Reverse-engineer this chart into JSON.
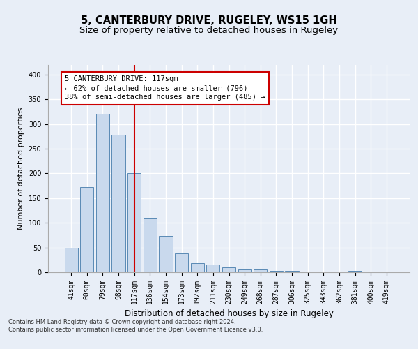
{
  "title": "5, CANTERBURY DRIVE, RUGELEY, WS15 1GH",
  "subtitle": "Size of property relative to detached houses in Rugeley",
  "xlabel": "Distribution of detached houses by size in Rugeley",
  "ylabel": "Number of detached properties",
  "bar_labels": [
    "41sqm",
    "60sqm",
    "79sqm",
    "98sqm",
    "117sqm",
    "136sqm",
    "154sqm",
    "173sqm",
    "192sqm",
    "211sqm",
    "230sqm",
    "249sqm",
    "268sqm",
    "287sqm",
    "306sqm",
    "325sqm",
    "343sqm",
    "362sqm",
    "381sqm",
    "400sqm",
    "419sqm"
  ],
  "bar_values": [
    50,
    172,
    320,
    278,
    200,
    109,
    73,
    38,
    18,
    16,
    10,
    5,
    5,
    3,
    3,
    0,
    0,
    0,
    3,
    0,
    2
  ],
  "bar_color": "#c9d9ed",
  "bar_edge_color": "#5a8ab5",
  "highlight_index": 4,
  "highlight_line_color": "#cc0000",
  "annotation_line1": "5 CANTERBURY DRIVE: 117sqm",
  "annotation_line2": "← 62% of detached houses are smaller (796)",
  "annotation_line3": "38% of semi-detached houses are larger (485) →",
  "annotation_box_color": "#ffffff",
  "annotation_box_edge_color": "#cc0000",
  "ylim": [
    0,
    420
  ],
  "yticks": [
    0,
    50,
    100,
    150,
    200,
    250,
    300,
    350,
    400
  ],
  "footer_text": "Contains HM Land Registry data © Crown copyright and database right 2024.\nContains public sector information licensed under the Open Government Licence v3.0.",
  "bg_color": "#e8eef7",
  "plot_bg_color": "#e8eef7",
  "grid_color": "#ffffff",
  "title_fontsize": 10.5,
  "subtitle_fontsize": 9.5,
  "tick_fontsize": 7,
  "ylabel_fontsize": 8,
  "xlabel_fontsize": 8.5,
  "footer_fontsize": 6,
  "annotation_fontsize": 7.5
}
